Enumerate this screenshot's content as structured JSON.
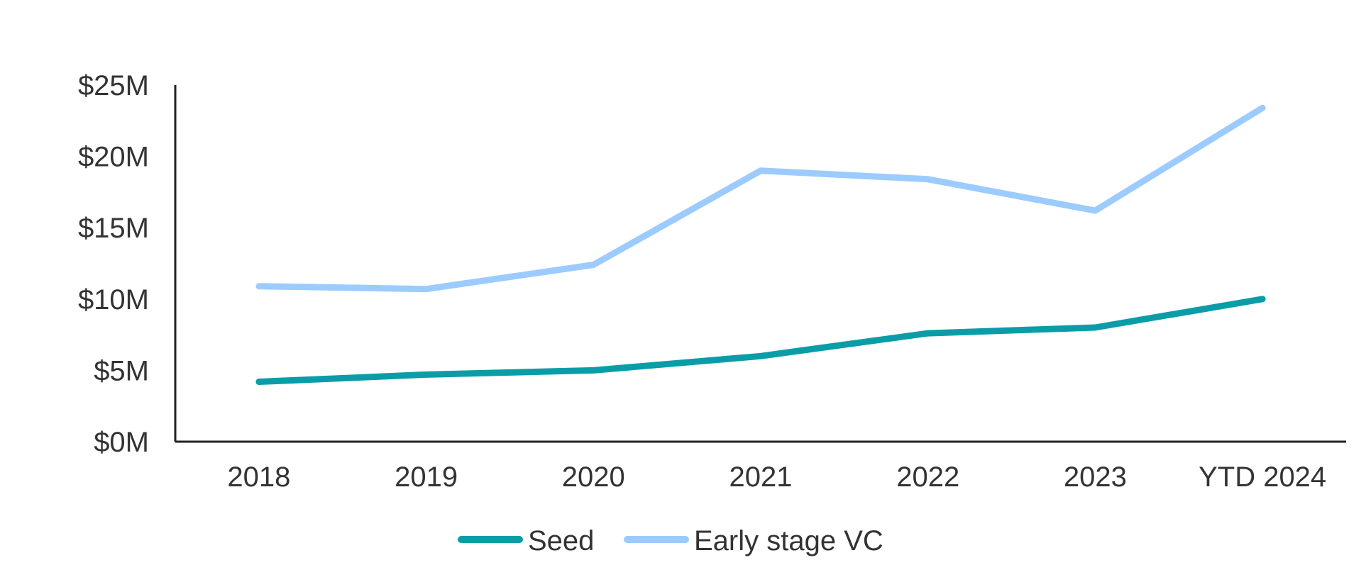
{
  "chart_data": {
    "type": "line",
    "categories": [
      "2018",
      "2019",
      "2020",
      "2021",
      "2022",
      "2023",
      "YTD 2024"
    ],
    "series": [
      {
        "name": "Seed",
        "color": "#0a9da8",
        "values": [
          4.2,
          4.7,
          5.0,
          6.0,
          7.6,
          8.0,
          10.0
        ]
      },
      {
        "name": "Early stage VC",
        "color": "#9ccbff",
        "values": [
          10.9,
          10.7,
          12.4,
          19.0,
          18.4,
          16.2,
          23.4
        ]
      }
    ],
    "ylim": [
      0,
      25
    ],
    "yticks": [
      0,
      5,
      10,
      15,
      20,
      25
    ],
    "ytick_labels": [
      "$0M",
      "$5M",
      "$10M",
      "$15M",
      "$20M",
      "$25M"
    ],
    "legend_position": "bottom-center",
    "grid": false
  }
}
